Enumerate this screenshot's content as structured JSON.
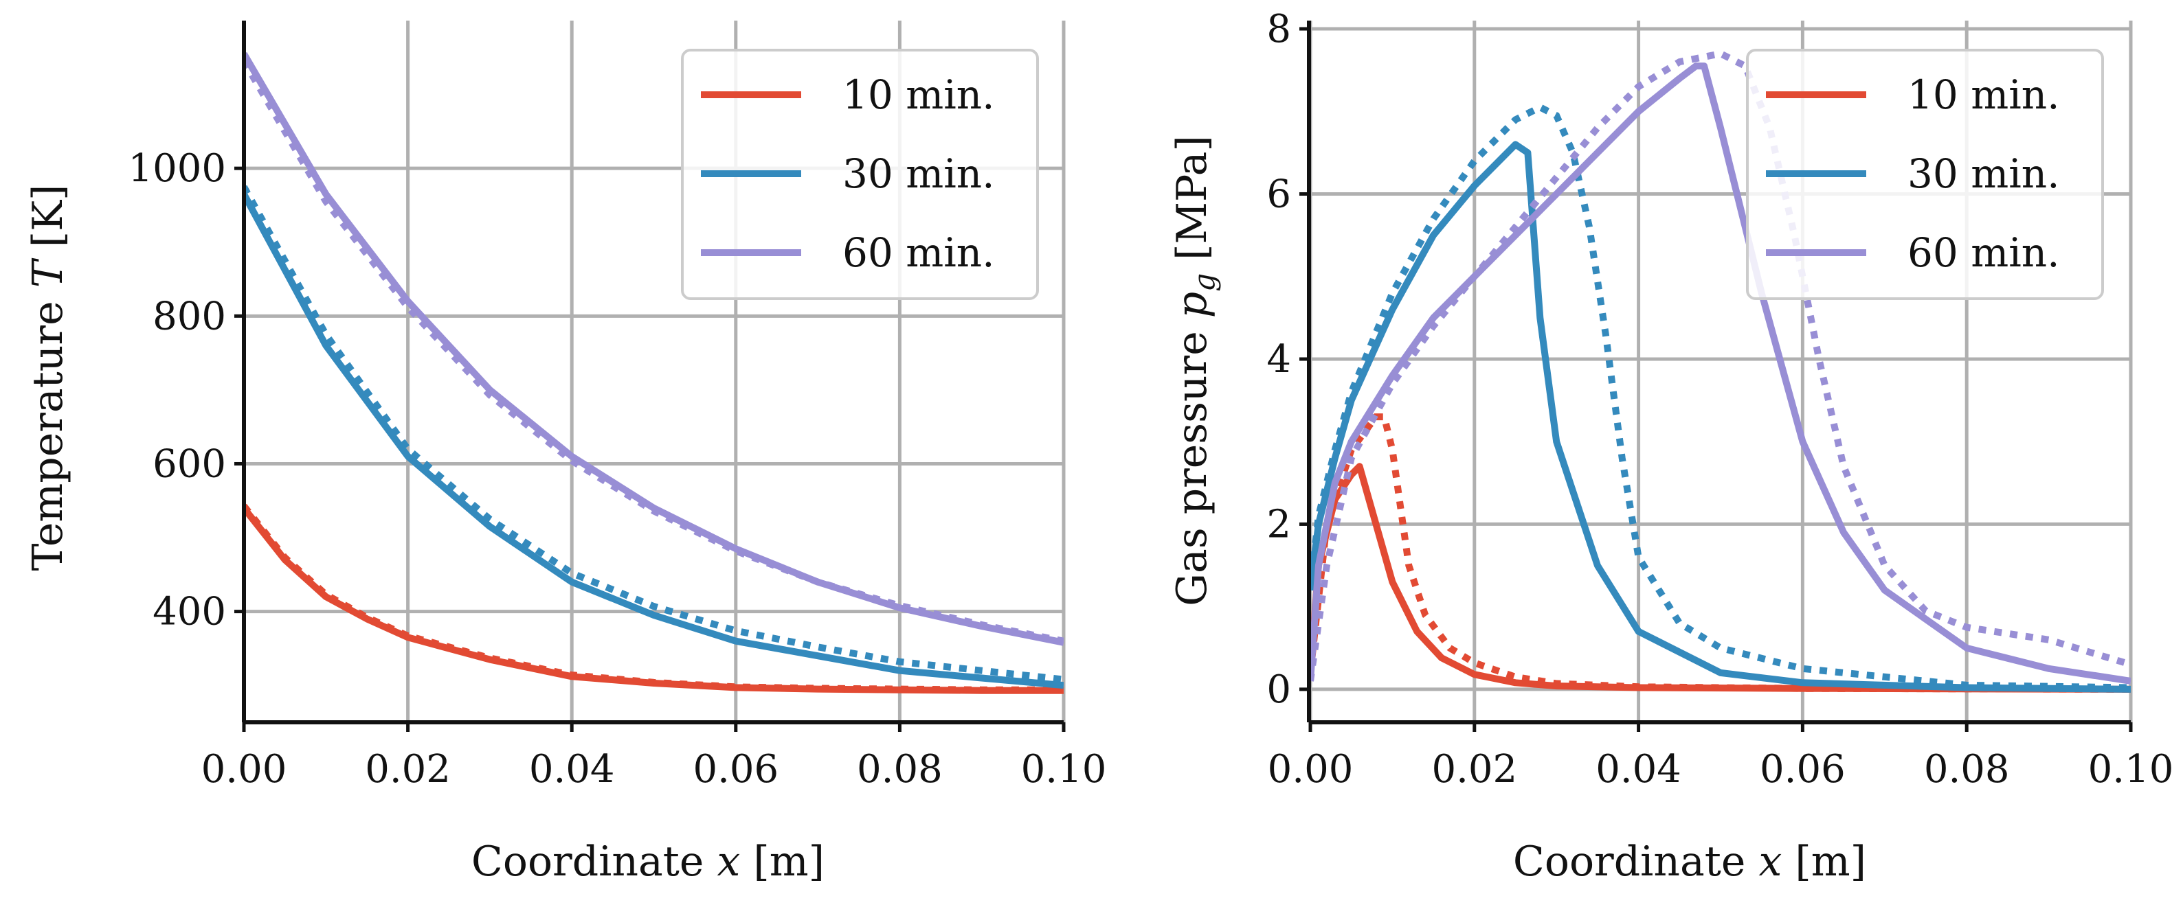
{
  "colors": {
    "10min": "#E24A33",
    "30min": "#348ABD",
    "60min": "#988ED5"
  },
  "chart_data": [
    {
      "type": "line",
      "xlabel": "Coordinate x [m]",
      "xlabel_parts": {
        "prefix": "Coordinate ",
        "symbol": "x",
        "suffix": " [m]"
      },
      "ylabel": "Temperature T [K]",
      "ylabel_parts": {
        "prefix": "Temperature ",
        "symbol": "T",
        "suffix": " [K]"
      },
      "xlim": [
        0,
        0.1
      ],
      "ylim": [
        250,
        1200
      ],
      "xticks": [
        0,
        0.02,
        0.04,
        0.06,
        0.08,
        0.1
      ],
      "xtick_labels": [
        "0.00",
        "0.02",
        "0.04",
        "0.06",
        "0.08",
        "0.10"
      ],
      "yticks": [
        400,
        600,
        800,
        1000
      ],
      "ytick_labels": [
        "400",
        "600",
        "800",
        "1000"
      ],
      "grid": true,
      "legend": [
        "10 min.",
        "30 min.",
        "60 min."
      ],
      "legend_position": "top-right",
      "series": [
        {
          "name": "10 min.",
          "color_key": "10min",
          "style": "solid",
          "x": [
            0,
            0.005,
            0.01,
            0.015,
            0.02,
            0.03,
            0.04,
            0.05,
            0.06,
            0.07,
            0.08,
            0.09,
            0.1
          ],
          "y": [
            540,
            470,
            420,
            390,
            365,
            335,
            312,
            303,
            297,
            295,
            294,
            293,
            293
          ]
        },
        {
          "name": "10 min.",
          "color_key": "10min",
          "style": "dotted",
          "x": [
            0,
            0.005,
            0.01,
            0.015,
            0.02,
            0.03,
            0.04,
            0.05,
            0.06,
            0.07,
            0.08,
            0.09,
            0.1
          ],
          "y": [
            543,
            473,
            423,
            392,
            367,
            337,
            314,
            304,
            298,
            296,
            295,
            294,
            294
          ]
        },
        {
          "name": "30 min.",
          "color_key": "30min",
          "style": "solid",
          "x": [
            0,
            0.01,
            0.02,
            0.03,
            0.04,
            0.05,
            0.06,
            0.07,
            0.08,
            0.09,
            0.1
          ],
          "y": [
            965,
            760,
            610,
            515,
            440,
            395,
            360,
            340,
            320,
            310,
            300
          ]
        },
        {
          "name": "30 min.",
          "color_key": "30min",
          "style": "dotted",
          "x": [
            0,
            0.01,
            0.02,
            0.03,
            0.04,
            0.05,
            0.06,
            0.07,
            0.08,
            0.09,
            0.1
          ],
          "y": [
            975,
            775,
            620,
            525,
            452,
            407,
            374,
            352,
            332,
            320,
            308
          ]
        },
        {
          "name": "60 min.",
          "color_key": "60min",
          "style": "solid",
          "x": [
            0,
            0.01,
            0.02,
            0.03,
            0.04,
            0.05,
            0.06,
            0.07,
            0.08,
            0.09,
            0.1
          ],
          "y": [
            1155,
            965,
            820,
            700,
            610,
            540,
            485,
            440,
            405,
            380,
            358
          ]
        },
        {
          "name": "60 min.",
          "color_key": "60min",
          "style": "dotted",
          "x": [
            0,
            0.01,
            0.02,
            0.03,
            0.04,
            0.05,
            0.06,
            0.07,
            0.08,
            0.09,
            0.1
          ],
          "y": [
            1145,
            955,
            812,
            693,
            604,
            536,
            482,
            440,
            408,
            382,
            360
          ]
        }
      ]
    },
    {
      "type": "line",
      "xlabel": "Coordinate x [m]",
      "xlabel_parts": {
        "prefix": "Coordinate ",
        "symbol": "x",
        "suffix": " [m]"
      },
      "ylabel": "Gas pressure pg [MPa]",
      "ylabel_parts": {
        "prefix": "Gas pressure ",
        "symbol": "p",
        "sub": "g",
        "suffix": " [MPa]"
      },
      "xlim": [
        0,
        0.1
      ],
      "ylim": [
        -0.4,
        8.1
      ],
      "xticks": [
        0,
        0.02,
        0.04,
        0.06,
        0.08,
        0.1
      ],
      "xtick_labels": [
        "0.00",
        "0.02",
        "0.04",
        "0.06",
        "0.08",
        "0.10"
      ],
      "yticks": [
        0,
        2,
        4,
        6,
        8
      ],
      "ytick_labels": [
        "0",
        "2",
        "4",
        "6",
        "8"
      ],
      "grid": true,
      "legend": [
        "10 min.",
        "30 min.",
        "60 min."
      ],
      "legend_position": "top-right",
      "series": [
        {
          "name": "10 min.",
          "color_key": "10min",
          "style": "solid",
          "x": [
            0,
            0.001,
            0.003,
            0.005,
            0.006,
            0.008,
            0.01,
            0.013,
            0.016,
            0.02,
            0.025,
            0.03,
            0.04,
            0.06,
            0.1
          ],
          "y": [
            0.2,
            1.5,
            2.3,
            2.6,
            2.7,
            2.0,
            1.3,
            0.7,
            0.38,
            0.18,
            0.08,
            0.04,
            0.02,
            0.01,
            0.0
          ]
        },
        {
          "name": "10 min.",
          "color_key": "10min",
          "style": "dotted",
          "x": [
            0,
            0.002,
            0.005,
            0.008,
            0.009,
            0.01,
            0.011,
            0.012,
            0.014,
            0.017,
            0.02,
            0.025,
            0.03,
            0.04,
            0.06,
            0.1
          ],
          "y": [
            0.2,
            2.0,
            2.9,
            3.3,
            3.3,
            2.9,
            2.2,
            1.5,
            0.9,
            0.5,
            0.32,
            0.15,
            0.07,
            0.03,
            0.01,
            0.0
          ]
        },
        {
          "name": "30 min.",
          "color_key": "30min",
          "style": "solid",
          "x": [
            0,
            0.001,
            0.003,
            0.005,
            0.01,
            0.015,
            0.02,
            0.025,
            0.0265,
            0.028,
            0.03,
            0.035,
            0.04,
            0.05,
            0.06,
            0.08,
            0.1
          ],
          "y": [
            1.2,
            2.0,
            2.8,
            3.5,
            4.6,
            5.5,
            6.1,
            6.6,
            6.5,
            4.5,
            3.0,
            1.5,
            0.7,
            0.2,
            0.08,
            0.02,
            0.0
          ]
        },
        {
          "name": "30 min.",
          "color_key": "30min",
          "style": "dotted",
          "x": [
            0,
            0.001,
            0.003,
            0.005,
            0.01,
            0.015,
            0.02,
            0.025,
            0.028,
            0.03,
            0.032,
            0.034,
            0.036,
            0.038,
            0.04,
            0.045,
            0.05,
            0.06,
            0.08,
            0.1
          ],
          "y": [
            1.2,
            2.1,
            2.9,
            3.6,
            4.8,
            5.7,
            6.4,
            6.9,
            7.05,
            6.95,
            6.5,
            5.6,
            4.3,
            2.8,
            1.6,
            0.8,
            0.5,
            0.25,
            0.05,
            0.02
          ]
        },
        {
          "name": "60 min.",
          "color_key": "60min",
          "style": "solid",
          "x": [
            0,
            0.001,
            0.003,
            0.005,
            0.01,
            0.015,
            0.02,
            0.025,
            0.03,
            0.035,
            0.04,
            0.045,
            0.047,
            0.048,
            0.05,
            0.055,
            0.06,
            0.065,
            0.07,
            0.08,
            0.09,
            0.1
          ],
          "y": [
            0.1,
            1.5,
            2.5,
            3.0,
            3.8,
            4.5,
            5.0,
            5.5,
            6.0,
            6.5,
            7.0,
            7.4,
            7.55,
            7.55,
            6.8,
            4.8,
            3.0,
            1.9,
            1.2,
            0.5,
            0.25,
            0.1
          ]
        },
        {
          "name": "60 min.",
          "color_key": "60min",
          "style": "dotted",
          "x": [
            0,
            0.002,
            0.005,
            0.01,
            0.015,
            0.02,
            0.025,
            0.03,
            0.035,
            0.04,
            0.045,
            0.05,
            0.053,
            0.056,
            0.059,
            0.062,
            0.065,
            0.07,
            0.075,
            0.08,
            0.09,
            0.1
          ],
          "y": [
            0.1,
            1.5,
            2.8,
            3.7,
            4.4,
            5.0,
            5.6,
            6.2,
            6.8,
            7.3,
            7.6,
            7.7,
            7.55,
            6.8,
            5.5,
            4.0,
            2.7,
            1.5,
            0.95,
            0.75,
            0.6,
            0.3
          ]
        }
      ]
    }
  ]
}
